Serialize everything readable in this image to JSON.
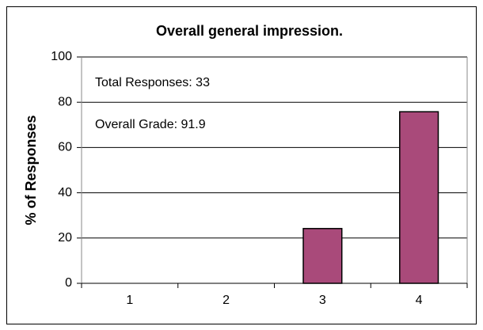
{
  "chart_data": {
    "type": "bar",
    "title": "Overall general impression.",
    "ylabel": "% of Responses",
    "annotations": [
      "Total Responses: 33",
      "Overall Grade: 91.9"
    ],
    "categories": [
      "1",
      "2",
      "3",
      "4"
    ],
    "values": [
      0,
      0,
      24.2,
      75.8
    ],
    "color": "#a94a7a",
    "ylim": [
      0,
      100
    ],
    "yticks": [
      0,
      20,
      40,
      60,
      80,
      100
    ],
    "grid": true
  }
}
